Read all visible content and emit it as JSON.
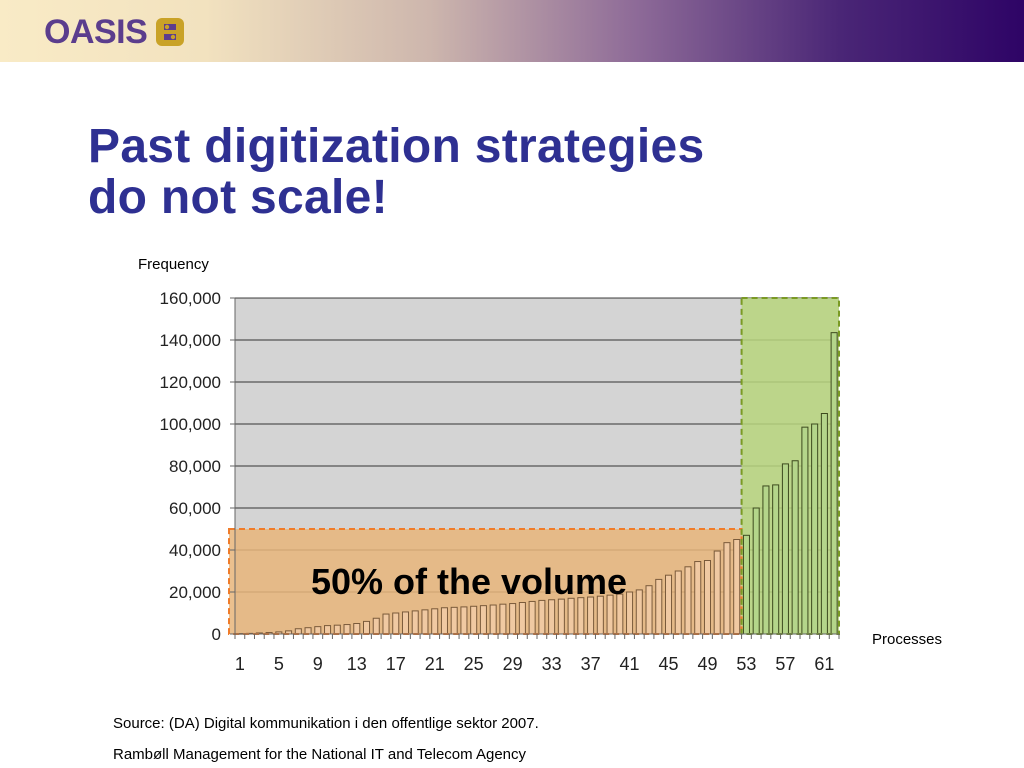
{
  "header": {
    "logo_text": "OASIS",
    "logo_icon": "oasis-mark-icon",
    "gradient": [
      "#f9ebc6",
      "#cdb6ad",
      "#8e6b98",
      "#2e0466"
    ]
  },
  "slide": {
    "title_line1": "Past digitization strategies",
    "title_line2": "do not scale!",
    "title_color": "#2e3092"
  },
  "chart_data": {
    "type": "bar",
    "y_caption": "Frequency",
    "x_caption": "Processes",
    "ylim": [
      0,
      160000
    ],
    "yticks": [
      0,
      20000,
      40000,
      60000,
      80000,
      100000,
      120000,
      140000,
      160000
    ],
    "ytick_labels": [
      "0",
      "20,000",
      "40,000",
      "60,000",
      "80,000",
      "100,000",
      "120,000",
      "140,000",
      "160,000"
    ],
    "xtick_labels": [
      "1",
      "5",
      "9",
      "13",
      "17",
      "21",
      "25",
      "29",
      "33",
      "37",
      "41",
      "45",
      "49",
      "53",
      "57",
      "61"
    ],
    "x": [
      1,
      2,
      3,
      4,
      5,
      6,
      7,
      8,
      9,
      10,
      11,
      12,
      13,
      14,
      15,
      16,
      17,
      18,
      19,
      20,
      21,
      22,
      23,
      24,
      25,
      26,
      27,
      28,
      29,
      30,
      31,
      32,
      33,
      34,
      35,
      36,
      37,
      38,
      39,
      40,
      41,
      42,
      43,
      44,
      45,
      46,
      47,
      48,
      49,
      50,
      51,
      52,
      53,
      54,
      55,
      56,
      57,
      58,
      59,
      60,
      61,
      62
    ],
    "values": [
      200,
      300,
      500,
      700,
      1000,
      1500,
      2500,
      3000,
      3500,
      4000,
      4200,
      4500,
      5000,
      6000,
      7500,
      9500,
      10000,
      10500,
      11000,
      11500,
      12000,
      12500,
      12700,
      12900,
      13200,
      13500,
      13800,
      14200,
      14500,
      15000,
      15500,
      16000,
      16300,
      16600,
      17000,
      17300,
      17600,
      18000,
      18500,
      19000,
      20000,
      21000,
      23000,
      26000,
      28000,
      30000,
      32000,
      34500,
      35000,
      39500,
      43500,
      45000,
      47000,
      60000,
      70500,
      71000,
      81000,
      82500,
      98500,
      100000,
      105000,
      143500
    ],
    "grid": true,
    "plot_bg": "#d4d4d4",
    "bar_colors": {
      "orange_region": "#f0c9a2",
      "green_region": "#b4d58a"
    },
    "highlight_regions": [
      {
        "name": "low-volume",
        "x_from": 1,
        "x_to": 52,
        "y_to": 50000,
        "color": "#e8b57a",
        "border": "#f07c2a",
        "label": ""
      },
      {
        "name": "high-volume",
        "x_from": 53,
        "x_to": 62,
        "y_to": 160000,
        "color": "#b7d57c",
        "border": "#7a9a24",
        "label": ""
      }
    ],
    "annotation": "50% of the volume"
  },
  "footer": {
    "source_line1": "Source: (DA) Digital kommunikation i den offentlige sektor 2007.",
    "source_line2": "Rambøll Management for the National IT and Telecom Agency"
  }
}
